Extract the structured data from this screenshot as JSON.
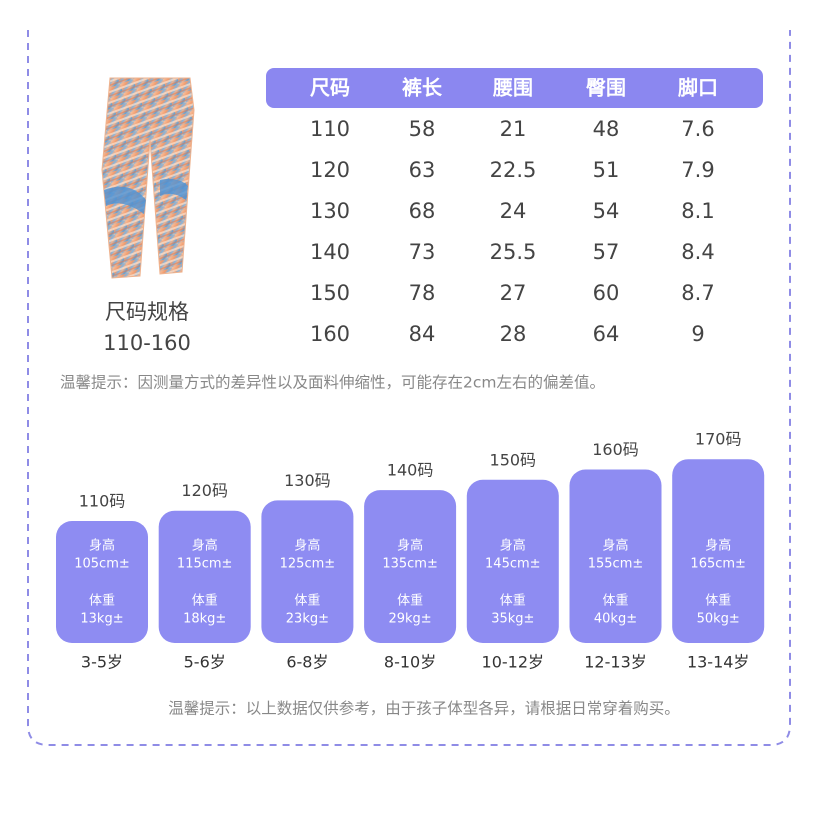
{
  "product": {
    "label": "尺码规格",
    "range": "110-160"
  },
  "size_table": {
    "headers": [
      "尺码",
      "裤长",
      "腰围",
      "臀围",
      "脚口"
    ],
    "rows": [
      [
        "110",
        "58",
        "21",
        "48",
        "7.6"
      ],
      [
        "120",
        "63",
        "22.5",
        "51",
        "7.9"
      ],
      [
        "130",
        "68",
        "24",
        "54",
        "8.1"
      ],
      [
        "140",
        "73",
        "25.5",
        "57",
        "8.4"
      ],
      [
        "150",
        "78",
        "27",
        "60",
        "8.7"
      ],
      [
        "160",
        "84",
        "28",
        "64",
        "9"
      ]
    ]
  },
  "note_1": "温馨提示：因测量方式的差异性以及面料伸缩性，可能存在2cm左右的偏差值。",
  "size_cards": [
    {
      "size": "110码",
      "height_label": "身高",
      "height": "105cm±",
      "weight_label": "体重",
      "weight": "13kg±",
      "age": "3-5岁"
    },
    {
      "size": "120码",
      "height_label": "身高",
      "height": "115cm±",
      "weight_label": "体重",
      "weight": "18kg±",
      "age": "5-6岁"
    },
    {
      "size": "130码",
      "height_label": "身高",
      "height": "125cm±",
      "weight_label": "体重",
      "weight": "23kg±",
      "age": "6-8岁"
    },
    {
      "size": "140码",
      "height_label": "身高",
      "height": "135cm±",
      "weight_label": "体重",
      "weight": "29kg±",
      "age": "8-10岁"
    },
    {
      "size": "150码",
      "height_label": "身高",
      "height": "145cm±",
      "weight_label": "体重",
      "weight": "35kg±",
      "age": "10-12岁"
    },
    {
      "size": "160码",
      "height_label": "身高",
      "height": "155cm±",
      "weight_label": "体重",
      "weight": "40kg±",
      "age": "12-13岁"
    },
    {
      "size": "170码",
      "height_label": "身高",
      "height": "165cm±",
      "weight_label": "体重",
      "weight": "50kg±",
      "age": "13-14岁"
    }
  ],
  "note_2": "温馨提示：以上数据仅供参考，由于孩子体型各异，请根据日常穿着购买。"
}
